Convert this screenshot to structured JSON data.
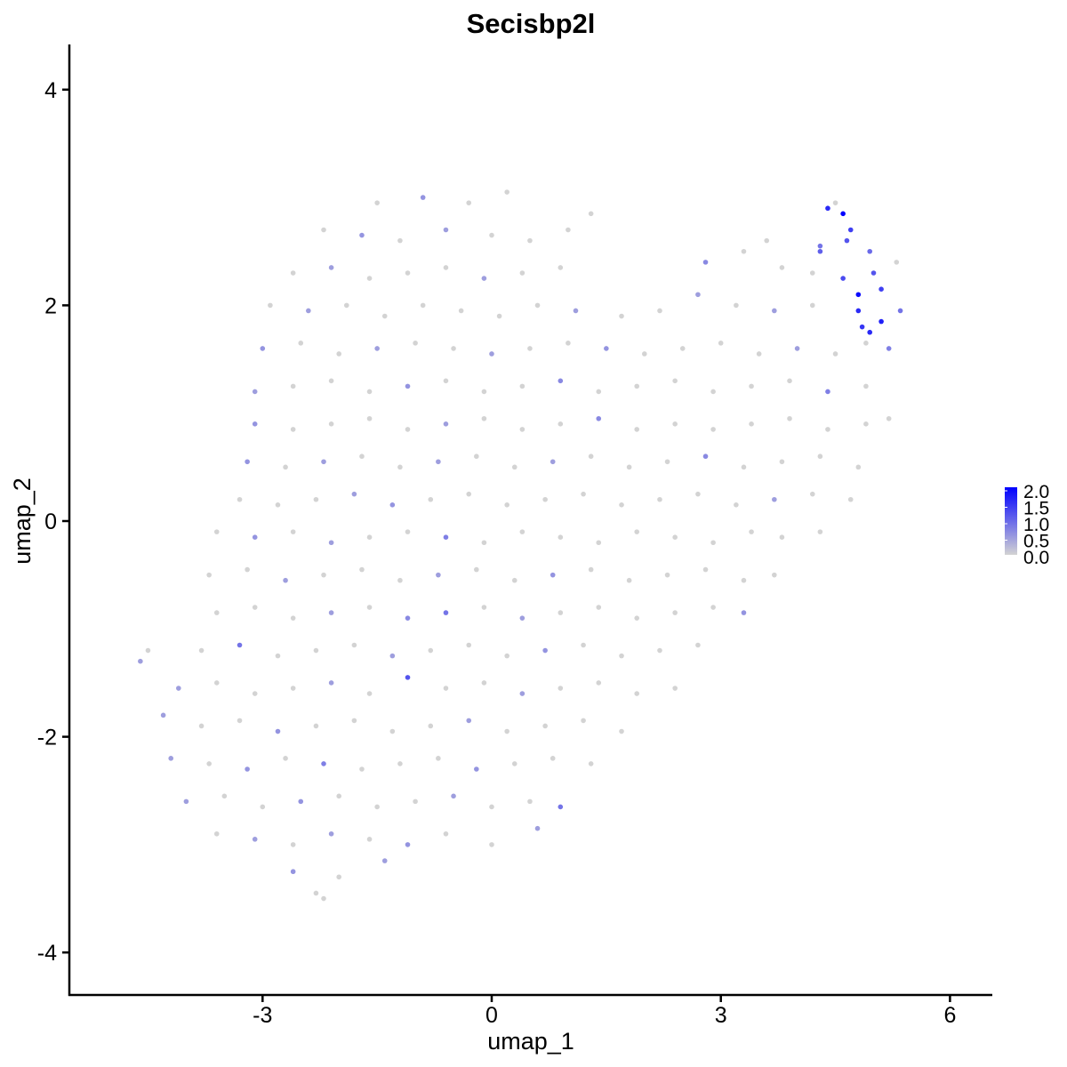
{
  "chart_data": {
    "type": "scatter",
    "title": "Secisbp2l",
    "xlabel": "umap_1",
    "ylabel": "umap_2",
    "xlim": [
      -5.54,
      6.55
    ],
    "ylim": [
      -4.39,
      4.42
    ],
    "xticks": [
      -3,
      0,
      3,
      6
    ],
    "yticks": [
      -4,
      -2,
      0,
      2,
      4
    ],
    "xtick_labels": [
      "-3",
      "0",
      "3",
      "6"
    ],
    "ytick_labels": [
      "-4",
      "-2",
      "0",
      "2",
      "4"
    ],
    "grid": false,
    "legend": {
      "placement": "right",
      "type": "colorbar",
      "range": [
        0,
        2.0
      ],
      "labels": [
        "2.0",
        "1.5",
        "1.0",
        "0.5",
        "0.0"
      ],
      "low_color": "#D3D3D3",
      "high_color": "#0000FF"
    },
    "points_format": [
      "umap_1",
      "umap_2",
      "expression"
    ],
    "points": [
      [
        -1.5,
        2.95,
        0
      ],
      [
        -0.9,
        3.0,
        0.6
      ],
      [
        -0.3,
        2.95,
        0
      ],
      [
        0.2,
        3.05,
        0
      ],
      [
        4.5,
        2.95,
        0
      ],
      [
        4.6,
        2.85,
        2.0
      ],
      [
        -2.2,
        2.7,
        0
      ],
      [
        -1.7,
        2.65,
        0.6
      ],
      [
        -1.2,
        2.6,
        0
      ],
      [
        -0.6,
        2.7,
        0.5
      ],
      [
        0,
        2.65,
        0
      ],
      [
        0.5,
        2.6,
        0
      ],
      [
        1.0,
        2.7,
        0
      ],
      [
        1.3,
        2.85,
        0
      ],
      [
        4.3,
        2.55,
        0.9
      ],
      [
        4.7,
        2.7,
        1.4
      ],
      [
        4.95,
        2.5,
        1.0
      ],
      [
        3.6,
        2.6,
        0
      ],
      [
        -2.6,
        2.3,
        0
      ],
      [
        -2.1,
        2.35,
        0.5
      ],
      [
        -1.6,
        2.25,
        0
      ],
      [
        -1.1,
        2.3,
        0
      ],
      [
        -0.6,
        2.35,
        0
      ],
      [
        -0.1,
        2.25,
        0.5
      ],
      [
        0.4,
        2.3,
        0
      ],
      [
        0.9,
        2.35,
        0
      ],
      [
        2.8,
        2.4,
        0.7
      ],
      [
        3.3,
        2.5,
        0
      ],
      [
        3.8,
        2.35,
        0
      ],
      [
        4.2,
        2.3,
        0
      ],
      [
        4.6,
        2.25,
        1.3
      ],
      [
        5.0,
        2.3,
        1.2
      ],
      [
        5.3,
        2.4,
        0
      ],
      [
        -2.9,
        2.0,
        0
      ],
      [
        -2.4,
        1.95,
        0.5
      ],
      [
        -1.9,
        2.0,
        0
      ],
      [
        -1.4,
        1.9,
        0
      ],
      [
        -0.9,
        2.0,
        0
      ],
      [
        -0.4,
        1.95,
        0
      ],
      [
        0.1,
        1.9,
        0
      ],
      [
        0.6,
        2.0,
        0
      ],
      [
        1.1,
        1.95,
        0.5
      ],
      [
        1.7,
        1.9,
        0
      ],
      [
        2.2,
        1.95,
        0
      ],
      [
        2.7,
        2.1,
        0.5
      ],
      [
        3.2,
        2.0,
        0
      ],
      [
        3.7,
        1.95,
        0.5
      ],
      [
        4.2,
        2.0,
        0
      ],
      [
        4.8,
        1.95,
        1.6
      ],
      [
        5.1,
        1.85,
        1.7
      ],
      [
        5.35,
        1.95,
        0.9
      ],
      [
        -3.0,
        1.6,
        0.6
      ],
      [
        -2.5,
        1.65,
        0
      ],
      [
        -2.0,
        1.55,
        0
      ],
      [
        -1.5,
        1.6,
        0.5
      ],
      [
        -1.0,
        1.65,
        0
      ],
      [
        -0.5,
        1.6,
        0
      ],
      [
        0,
        1.55,
        0.5
      ],
      [
        0.5,
        1.6,
        0
      ],
      [
        1.0,
        1.65,
        0
      ],
      [
        1.5,
        1.6,
        0.6
      ],
      [
        2.0,
        1.55,
        0
      ],
      [
        2.5,
        1.6,
        0
      ],
      [
        3.0,
        1.65,
        0
      ],
      [
        3.5,
        1.55,
        0
      ],
      [
        4.0,
        1.6,
        0.5
      ],
      [
        4.5,
        1.55,
        0
      ],
      [
        4.9,
        1.65,
        0
      ],
      [
        5.2,
        1.6,
        0.8
      ],
      [
        -3.1,
        1.2,
        0.5
      ],
      [
        -2.6,
        1.25,
        0
      ],
      [
        -2.1,
        1.3,
        0
      ],
      [
        -1.6,
        1.2,
        0
      ],
      [
        -1.1,
        1.25,
        0.6
      ],
      [
        -0.6,
        1.3,
        0
      ],
      [
        -0.1,
        1.2,
        0
      ],
      [
        0.4,
        1.25,
        0
      ],
      [
        0.9,
        1.3,
        0.7
      ],
      [
        1.4,
        1.2,
        0
      ],
      [
        1.9,
        1.25,
        0
      ],
      [
        2.4,
        1.3,
        0
      ],
      [
        2.9,
        1.2,
        0
      ],
      [
        3.4,
        1.25,
        0
      ],
      [
        3.9,
        1.3,
        0
      ],
      [
        4.4,
        1.2,
        0.8
      ],
      [
        4.9,
        1.25,
        0
      ],
      [
        -3.1,
        0.9,
        0.6
      ],
      [
        -2.6,
        0.85,
        0
      ],
      [
        -2.1,
        0.9,
        0
      ],
      [
        -1.6,
        0.95,
        0
      ],
      [
        -1.1,
        0.85,
        0
      ],
      [
        -0.6,
        0.9,
        0.5
      ],
      [
        -0.1,
        0.95,
        0
      ],
      [
        0.4,
        0.85,
        0
      ],
      [
        0.9,
        0.9,
        0
      ],
      [
        1.4,
        0.95,
        0.7
      ],
      [
        1.9,
        0.85,
        0
      ],
      [
        2.4,
        0.9,
        0
      ],
      [
        2.9,
        0.85,
        0
      ],
      [
        3.4,
        0.9,
        0
      ],
      [
        3.9,
        0.95,
        0
      ],
      [
        4.4,
        0.85,
        0
      ],
      [
        4.9,
        0.9,
        0
      ],
      [
        5.2,
        0.95,
        0
      ],
      [
        -3.2,
        0.55,
        0.6
      ],
      [
        -2.7,
        0.5,
        0
      ],
      [
        -2.2,
        0.55,
        0.5
      ],
      [
        -1.7,
        0.6,
        0
      ],
      [
        -1.2,
        0.5,
        0
      ],
      [
        -0.7,
        0.55,
        0.5
      ],
      [
        -0.2,
        0.6,
        0
      ],
      [
        0.3,
        0.5,
        0
      ],
      [
        0.8,
        0.55,
        0.5
      ],
      [
        1.3,
        0.6,
        0
      ],
      [
        1.8,
        0.5,
        0
      ],
      [
        2.3,
        0.55,
        0
      ],
      [
        2.8,
        0.6,
        0.7
      ],
      [
        3.3,
        0.5,
        0
      ],
      [
        3.8,
        0.55,
        0
      ],
      [
        4.3,
        0.6,
        0
      ],
      [
        4.8,
        0.5,
        0
      ],
      [
        -3.3,
        0.2,
        0
      ],
      [
        -2.8,
        0.15,
        0
      ],
      [
        -2.3,
        0.2,
        0
      ],
      [
        -1.8,
        0.25,
        0.5
      ],
      [
        -1.3,
        0.15,
        0.6
      ],
      [
        -0.8,
        0.2,
        0
      ],
      [
        -0.3,
        0.25,
        0
      ],
      [
        0.2,
        0.15,
        0
      ],
      [
        0.7,
        0.2,
        0
      ],
      [
        1.2,
        0.25,
        0
      ],
      [
        1.7,
        0.15,
        0
      ],
      [
        2.2,
        0.2,
        0
      ],
      [
        2.7,
        0.25,
        0
      ],
      [
        3.2,
        0.15,
        0
      ],
      [
        3.7,
        0.2,
        0.5
      ],
      [
        4.2,
        0.25,
        0
      ],
      [
        4.7,
        0.2,
        0
      ],
      [
        -3.6,
        -0.1,
        0
      ],
      [
        -3.1,
        -0.15,
        0.6
      ],
      [
        -2.6,
        -0.1,
        0
      ],
      [
        -2.1,
        -0.2,
        0.5
      ],
      [
        -1.6,
        -0.15,
        0
      ],
      [
        -1.1,
        -0.1,
        0
      ],
      [
        -0.6,
        -0.15,
        0.8
      ],
      [
        -0.1,
        -0.2,
        0
      ],
      [
        0.4,
        -0.1,
        0
      ],
      [
        0.9,
        -0.15,
        0
      ],
      [
        1.4,
        -0.2,
        0
      ],
      [
        1.9,
        -0.1,
        0
      ],
      [
        2.4,
        -0.15,
        0
      ],
      [
        2.9,
        -0.2,
        0
      ],
      [
        3.4,
        -0.1,
        0
      ],
      [
        3.8,
        -0.15,
        0
      ],
      [
        4.3,
        -0.1,
        0
      ],
      [
        -3.7,
        -0.5,
        0
      ],
      [
        -3.2,
        -0.45,
        0
      ],
      [
        -2.7,
        -0.55,
        0.5
      ],
      [
        -2.2,
        -0.5,
        0
      ],
      [
        -1.7,
        -0.45,
        0
      ],
      [
        -1.2,
        -0.55,
        0
      ],
      [
        -0.7,
        -0.5,
        0.5
      ],
      [
        -0.2,
        -0.45,
        0
      ],
      [
        0.3,
        -0.55,
        0
      ],
      [
        0.8,
        -0.5,
        0.6
      ],
      [
        1.3,
        -0.45,
        0
      ],
      [
        1.8,
        -0.55,
        0
      ],
      [
        2.3,
        -0.5,
        0
      ],
      [
        2.8,
        -0.45,
        0
      ],
      [
        3.3,
        -0.55,
        0
      ],
      [
        3.7,
        -0.5,
        0
      ],
      [
        -3.6,
        -0.85,
        0
      ],
      [
        -3.1,
        -0.8,
        0
      ],
      [
        -2.6,
        -0.9,
        0
      ],
      [
        -2.1,
        -0.85,
        0.5
      ],
      [
        -1.6,
        -0.8,
        0
      ],
      [
        -1.1,
        -0.9,
        0.7
      ],
      [
        -0.6,
        -0.85,
        0.9
      ],
      [
        -0.1,
        -0.8,
        0
      ],
      [
        0.4,
        -0.9,
        0.5
      ],
      [
        0.9,
        -0.85,
        0
      ],
      [
        1.4,
        -0.8,
        0
      ],
      [
        1.9,
        -0.9,
        0
      ],
      [
        2.4,
        -0.85,
        0
      ],
      [
        2.9,
        -0.8,
        0
      ],
      [
        3.3,
        -0.85,
        0.6
      ],
      [
        -3.8,
        -1.2,
        0
      ],
      [
        -3.3,
        -1.15,
        0.9
      ],
      [
        -2.8,
        -1.25,
        0
      ],
      [
        -2.3,
        -1.2,
        0
      ],
      [
        -1.8,
        -1.15,
        0
      ],
      [
        -1.3,
        -1.25,
        0.5
      ],
      [
        -0.8,
        -1.2,
        0
      ],
      [
        -0.3,
        -1.15,
        0
      ],
      [
        0.2,
        -1.25,
        0
      ],
      [
        0.7,
        -1.2,
        0.6
      ],
      [
        1.2,
        -1.15,
        0
      ],
      [
        1.7,
        -1.25,
        0
      ],
      [
        2.2,
        -1.2,
        0
      ],
      [
        2.7,
        -1.15,
        0
      ],
      [
        -4.6,
        -1.3,
        0.5
      ],
      [
        -4.5,
        -1.2,
        0
      ],
      [
        -4.1,
        -1.55,
        0.5
      ],
      [
        -3.6,
        -1.5,
        0
      ],
      [
        -3.1,
        -1.6,
        0
      ],
      [
        -2.6,
        -1.55,
        0
      ],
      [
        -2.1,
        -1.5,
        0.5
      ],
      [
        -1.6,
        -1.6,
        0
      ],
      [
        -1.1,
        -1.45,
        1.2
      ],
      [
        -0.6,
        -1.55,
        0
      ],
      [
        -0.1,
        -1.5,
        0
      ],
      [
        0.4,
        -1.6,
        0.5
      ],
      [
        0.9,
        -1.55,
        0
      ],
      [
        1.4,
        -1.5,
        0
      ],
      [
        1.9,
        -1.6,
        0
      ],
      [
        2.4,
        -1.55,
        0
      ],
      [
        -4.3,
        -1.8,
        0.5
      ],
      [
        -3.8,
        -1.9,
        0
      ],
      [
        -3.3,
        -1.85,
        0
      ],
      [
        -2.8,
        -1.95,
        0.6
      ],
      [
        -2.3,
        -1.9,
        0
      ],
      [
        -1.8,
        -1.85,
        0
      ],
      [
        -1.3,
        -1.95,
        0
      ],
      [
        -0.8,
        -1.9,
        0
      ],
      [
        -0.3,
        -1.85,
        0.5
      ],
      [
        0.2,
        -1.95,
        0
      ],
      [
        0.7,
        -1.9,
        0
      ],
      [
        1.2,
        -1.85,
        0
      ],
      [
        1.7,
        -1.95,
        0
      ],
      [
        -4.2,
        -2.2,
        0.5
      ],
      [
        -3.7,
        -2.25,
        0
      ],
      [
        -3.2,
        -2.3,
        0.6
      ],
      [
        -2.7,
        -2.2,
        0
      ],
      [
        -2.2,
        -2.25,
        0.8
      ],
      [
        -1.7,
        -2.3,
        0
      ],
      [
        -1.2,
        -2.25,
        0
      ],
      [
        -0.7,
        -2.2,
        0
      ],
      [
        -0.2,
        -2.3,
        0.6
      ],
      [
        0.3,
        -2.25,
        0
      ],
      [
        0.8,
        -2.2,
        0
      ],
      [
        1.3,
        -2.25,
        0
      ],
      [
        -4.0,
        -2.6,
        0.5
      ],
      [
        -3.5,
        -2.55,
        0
      ],
      [
        -3.0,
        -2.65,
        0
      ],
      [
        -2.5,
        -2.6,
        0.6
      ],
      [
        -2.0,
        -2.55,
        0
      ],
      [
        -1.5,
        -2.65,
        0
      ],
      [
        -1.0,
        -2.6,
        0
      ],
      [
        -0.5,
        -2.55,
        0.5
      ],
      [
        0,
        -2.65,
        0
      ],
      [
        0.5,
        -2.6,
        0
      ],
      [
        0.9,
        -2.65,
        0.9
      ],
      [
        -3.6,
        -2.9,
        0
      ],
      [
        -3.1,
        -2.95,
        0.5
      ],
      [
        -2.6,
        -3.0,
        0
      ],
      [
        -2.1,
        -2.9,
        0.5
      ],
      [
        -1.6,
        -2.95,
        0
      ],
      [
        -1.1,
        -3.0,
        0.6
      ],
      [
        -0.6,
        -2.9,
        0
      ],
      [
        0,
        -3.0,
        0
      ],
      [
        0.6,
        -2.85,
        0.5
      ],
      [
        -2.6,
        -3.25,
        0.6
      ],
      [
        -2.3,
        -3.45,
        0
      ],
      [
        -2.0,
        -3.3,
        0
      ],
      [
        -1.4,
        -3.15,
        0.5
      ],
      [
        -2.2,
        -3.5,
        0
      ],
      [
        4.4,
        2.9,
        1.6
      ],
      [
        4.8,
        2.1,
        1.9
      ],
      [
        4.95,
        1.75,
        1.6
      ],
      [
        5.1,
        2.15,
        1.4
      ],
      [
        4.85,
        1.8,
        1.5
      ],
      [
        4.65,
        2.6,
        1.2
      ],
      [
        4.3,
        2.5,
        1.1
      ]
    ]
  }
}
